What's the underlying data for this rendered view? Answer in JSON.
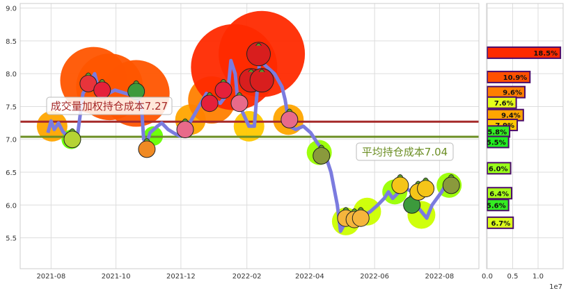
{
  "chart_data": [
    {
      "type": "line",
      "ylim": [
        5.03,
        9.07
      ],
      "xlim": [
        "2021-07-03",
        "2022-09-07"
      ],
      "grid": true,
      "y_ticks": [
        "5.5",
        "6.0",
        "6.5",
        "7.0",
        "7.5",
        "8.0",
        "8.5",
        "9.0"
      ],
      "x_ticks": [
        "2021-08",
        "2021-10",
        "2021-12",
        "2022-02",
        "2022-04",
        "2022-06",
        "2022-08"
      ],
      "line_color": "#7b7bdf",
      "series": [
        {
          "x": [
            "2021-07-29",
            "2021-08-01",
            "2021-08-04",
            "2021-08-08",
            "2021-08-12",
            "2021-08-19",
            "2021-08-25",
            "2021-08-27",
            "2021-08-31",
            "2021-09-04",
            "2021-09-11",
            "2021-09-15",
            "2021-09-18",
            "2021-09-24",
            "2021-09-30",
            "2021-10-10",
            "2021-10-20",
            "2021-10-25",
            "2021-10-27",
            "2021-10-30",
            "2021-11-02",
            "2021-11-09",
            "2021-11-13",
            "2021-11-19",
            "2021-11-24",
            "2021-11-30",
            "2021-12-05",
            "2021-12-11",
            "2021-12-18",
            "2021-12-25",
            "2021-12-31",
            "2022-01-07",
            "2022-01-14",
            "2022-01-17",
            "2022-01-21",
            "2022-01-24",
            "2022-01-27",
            "2022-02-03",
            "2022-02-08",
            "2022-02-10",
            "2022-02-13",
            "2022-02-20",
            "2022-02-27",
            "2022-03-06",
            "2022-03-09",
            "2022-03-13",
            "2022-03-19",
            "2022-03-26",
            "2022-04-02",
            "2022-04-08",
            "2022-04-15",
            "2022-04-21",
            "2022-04-27",
            "2022-04-30",
            "2022-05-05",
            "2022-05-11",
            "2022-05-18",
            "2022-05-28",
            "2022-06-04",
            "2022-06-10",
            "2022-06-14",
            "2022-06-18",
            "2022-06-24",
            "2022-06-30",
            "2022-07-07",
            "2022-07-10",
            "2022-07-15",
            "2022-07-20",
            "2022-07-25",
            "2022-08-03",
            "2022-08-08",
            "2022-08-16"
          ],
          "y": [
            7.1,
            7.28,
            7.15,
            7.25,
            7.12,
            7.0,
            6.95,
            7.2,
            7.7,
            7.8,
            8.0,
            7.75,
            7.7,
            7.7,
            7.75,
            7.7,
            7.65,
            7.5,
            7.0,
            6.95,
            7.1,
            7.2,
            7.25,
            7.15,
            7.1,
            7.05,
            7.15,
            7.3,
            7.5,
            7.7,
            7.6,
            7.55,
            7.7,
            8.2,
            8.0,
            7.5,
            7.45,
            7.2,
            7.2,
            7.6,
            8.2,
            8.1,
            8.0,
            7.8,
            7.6,
            7.2,
            7.15,
            7.2,
            7.1,
            6.95,
            6.8,
            6.5,
            6.0,
            5.6,
            5.75,
            5.8,
            5.8,
            5.9,
            6.0,
            6.1,
            6.2,
            6.1,
            6.2,
            6.25,
            6.2,
            6.0,
            5.9,
            5.8,
            6.0,
            6.2,
            6.35,
            6.4
          ]
        }
      ],
      "glow": [
        {
          "x": "2021-08-02",
          "y": 7.2,
          "color": "#ffa500"
        },
        {
          "x": "2021-08-20",
          "y": 7.0,
          "color": "#66ff00"
        },
        {
          "x": "2021-09-10",
          "y": 7.9,
          "color": "#ff5500"
        },
        {
          "x": "2021-09-25",
          "y": 7.8,
          "color": "#ff5500"
        },
        {
          "x": "2021-10-20",
          "y": 7.7,
          "color": "#ff5500"
        },
        {
          "x": "2021-11-05",
          "y": 7.05,
          "color": "#66ff00"
        },
        {
          "x": "2021-12-10",
          "y": 7.3,
          "color": "#ffa500"
        },
        {
          "x": "2021-12-30",
          "y": 7.6,
          "color": "#ff7f00"
        },
        {
          "x": "2022-01-20",
          "y": 8.1,
          "color": "#ff2a00"
        },
        {
          "x": "2022-02-15",
          "y": 8.3,
          "color": "#ff2a00"
        },
        {
          "x": "2022-02-03",
          "y": 7.2,
          "color": "#ffc800"
        },
        {
          "x": "2022-03-12",
          "y": 7.3,
          "color": "#ffa500"
        },
        {
          "x": "2022-04-10",
          "y": 6.8,
          "color": "#99ff00"
        },
        {
          "x": "2022-05-05",
          "y": 5.75,
          "color": "#ccff00"
        },
        {
          "x": "2022-05-25",
          "y": 5.9,
          "color": "#ccff00"
        },
        {
          "x": "2022-06-20",
          "y": 6.2,
          "color": "#99ff00"
        },
        {
          "x": "2022-07-15",
          "y": 5.85,
          "color": "#ccff00"
        },
        {
          "x": "2022-08-10",
          "y": 6.3,
          "color": "#99ff00"
        }
      ],
      "markers": [
        {
          "x": "2021-08-21",
          "y": 7.0,
          "icon": "kiwi",
          "color": "#b5d334"
        },
        {
          "x": "2021-09-05",
          "y": 7.85,
          "icon": "watermelon-slice",
          "color": "#e8343b"
        },
        {
          "x": "2021-09-18",
          "y": 7.75,
          "icon": "strawberry",
          "color": "#e5203a"
        },
        {
          "x": "2021-10-20",
          "y": 7.73,
          "icon": "watermelon",
          "color": "#3c9a3c"
        },
        {
          "x": "2021-10-30",
          "y": 6.85,
          "icon": "carrot",
          "color": "#f08a24"
        },
        {
          "x": "2021-12-05",
          "y": 7.15,
          "icon": "radish",
          "color": "#e86a8a"
        },
        {
          "x": "2021-12-28",
          "y": 7.55,
          "icon": "strawberry",
          "color": "#e5203a"
        },
        {
          "x": "2022-01-10",
          "y": 7.75,
          "icon": "strawberry",
          "color": "#e5203a"
        },
        {
          "x": "2022-01-25",
          "y": 7.55,
          "icon": "radish",
          "color": "#e86a8a"
        },
        {
          "x": "2022-02-05",
          "y": 7.9,
          "icon": "apple",
          "color": "#d81e1e"
        },
        {
          "x": "2022-02-15",
          "y": 7.9,
          "icon": "apple",
          "color": "#d81e1e"
        },
        {
          "x": "2022-02-12",
          "y": 8.3,
          "icon": "apple",
          "color": "#d81e1e"
        },
        {
          "x": "2022-03-13",
          "y": 7.3,
          "icon": "radish",
          "color": "#e86a8a"
        },
        {
          "x": "2022-04-12",
          "y": 6.75,
          "icon": "pear",
          "color": "#8a9a3c"
        },
        {
          "x": "2022-05-05",
          "y": 5.8,
          "icon": "pineapple",
          "color": "#f5b53c"
        },
        {
          "x": "2022-05-13",
          "y": 5.78,
          "icon": "pineapple",
          "color": "#f5b53c"
        },
        {
          "x": "2022-05-19",
          "y": 5.8,
          "icon": "pineapple",
          "color": "#f5b53c"
        },
        {
          "x": "2022-06-25",
          "y": 6.3,
          "icon": "corn",
          "color": "#f5c518"
        },
        {
          "x": "2022-07-06",
          "y": 6.0,
          "icon": "peas",
          "color": "#3c9a3c"
        },
        {
          "x": "2022-07-12",
          "y": 6.2,
          "icon": "corn",
          "color": "#f5c518"
        },
        {
          "x": "2022-07-19",
          "y": 6.25,
          "icon": "corn",
          "color": "#f5c518"
        },
        {
          "x": "2022-08-12",
          "y": 6.3,
          "icon": "pear",
          "color": "#8a9a3c"
        }
      ],
      "hlines": [
        {
          "y": 7.27,
          "label": "成交量加权持仓成本7.27",
          "color": "#a52a2a"
        },
        {
          "y": 7.04,
          "label": "平均持仓成本7.04",
          "color": "#6b8e23"
        }
      ]
    },
    {
      "type": "bar",
      "orientation": "horizontal",
      "xlim": [
        0,
        1.5
      ],
      "x_ticks": [
        "0.0",
        "0.5",
        "1.0"
      ],
      "x_multiplier": "1e7",
      "border_color": "#4b0c6b",
      "bars": [
        {
          "price": 8.32,
          "value": 1.44,
          "label": "18.5%",
          "color": "#ff2a00"
        },
        {
          "price": 7.95,
          "value": 0.84,
          "label": "10.9%",
          "color": "#ff5000"
        },
        {
          "price": 7.72,
          "value": 0.74,
          "label": "9.6%",
          "color": "#ff7f00"
        },
        {
          "price": 7.56,
          "value": 0.57,
          "label": "7.6%",
          "color": "#e6ff1a"
        },
        {
          "price": 7.37,
          "value": 0.71,
          "label": "9.4%",
          "color": "#ffa500"
        },
        {
          "price": 7.22,
          "value": 0.59,
          "label": "7.9%",
          "color": "#ffc800"
        },
        {
          "price": 7.12,
          "value": 0.44,
          "label": "5.8%",
          "color": "#33ee22"
        },
        {
          "price": 6.96,
          "value": 0.42,
          "label": "5.5%",
          "color": "#22ee22"
        },
        {
          "price": 6.56,
          "value": 0.46,
          "label": "6.0%",
          "color": "#99ff1a"
        },
        {
          "price": 6.18,
          "value": 0.48,
          "label": "6.4%",
          "color": "#aaff1a"
        },
        {
          "price": 6.0,
          "value": 0.42,
          "label": "5.6%",
          "color": "#33ee22"
        },
        {
          "price": 5.73,
          "value": 0.51,
          "label": "6.7%",
          "color": "#ddff1a"
        }
      ]
    }
  ]
}
